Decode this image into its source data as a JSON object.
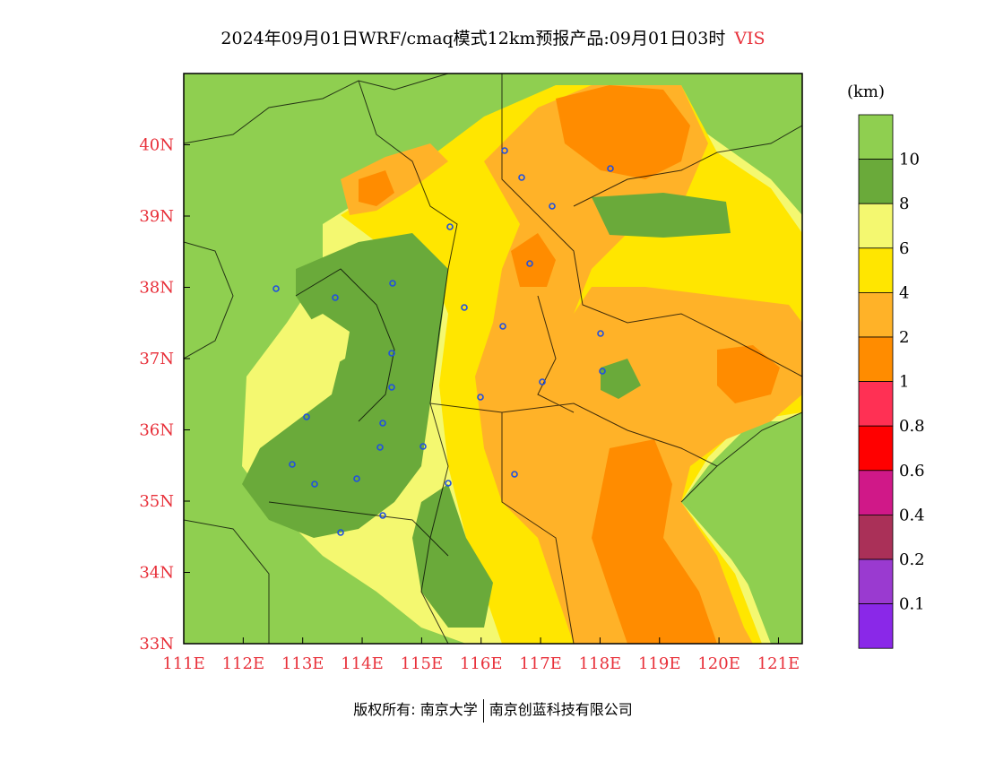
{
  "title": {
    "main": "2024年09月01日WRF/cmaq模式12km预报产品:09月01日03时",
    "variable": "VIS"
  },
  "axes": {
    "lon_labels": [
      "111E",
      "112E",
      "113E",
      "114E",
      "115E",
      "116E",
      "117E",
      "118E",
      "119E",
      "120E",
      "121E"
    ],
    "lat_labels": [
      "33N",
      "34N",
      "35N",
      "36N",
      "37N",
      "38N",
      "39N",
      "40N"
    ],
    "lon_range": [
      111,
      121.4
    ],
    "lat_range": [
      33,
      41
    ]
  },
  "legend": {
    "unit": "(km)",
    "levels": [
      {
        "label": "",
        "color": "#8fcf50"
      },
      {
        "label": "10",
        "color": "#6aaa3a"
      },
      {
        "label": "8",
        "color": "#f4f870"
      },
      {
        "label": "6",
        "color": "#ffe600"
      },
      {
        "label": "4",
        "color": "#ffb228"
      },
      {
        "label": "2",
        "color": "#ff8c00"
      },
      {
        "label": "1",
        "color": "#ff3054"
      },
      {
        "label": "0.8",
        "color": "#ff0000"
      },
      {
        "label": "0.6",
        "color": "#d01888"
      },
      {
        "label": "0.4",
        "color": "#aa3058"
      },
      {
        "label": "0.2",
        "color": "#9a3ad0"
      },
      {
        "label": "0.1",
        "color": "#8a28e8"
      }
    ]
  },
  "colors": {
    "green_light": "#8fcf50",
    "green_dark": "#6aaa3a",
    "yellow_light": "#f4f870",
    "yellow": "#ffe600",
    "orange_light": "#ffb228",
    "orange": "#ff8c00",
    "label_red": "#e8303a"
  },
  "footer": {
    "left": "版权所有: 南京大学",
    "right": "南京创蓝科技有限公司"
  }
}
